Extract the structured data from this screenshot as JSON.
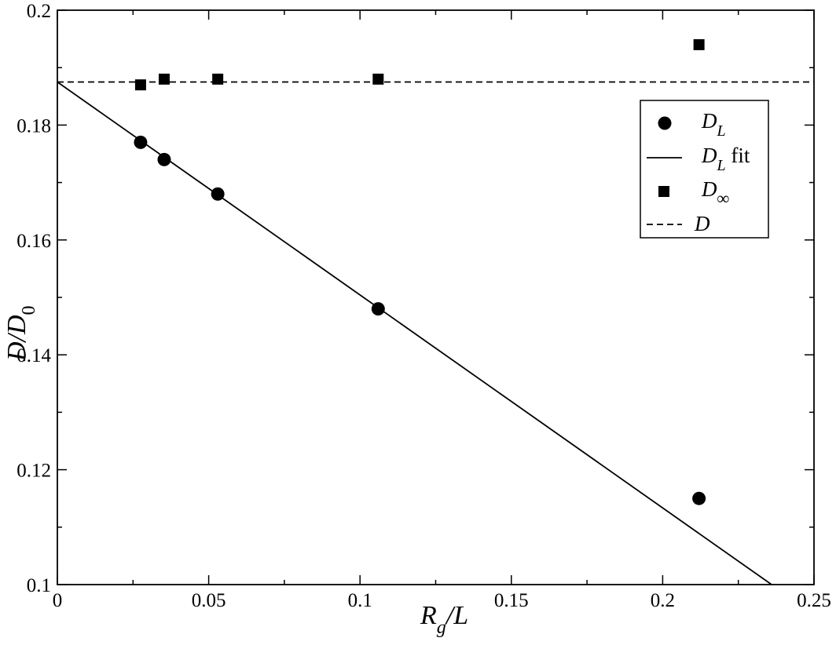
{
  "chart_data": {
    "type": "scatter",
    "xlabel": "R_g/L",
    "ylabel": "D/D_0",
    "xlim": [
      0,
      0.25
    ],
    "ylim": [
      0.1,
      0.2
    ],
    "x_ticks": [
      0,
      0.05,
      0.1,
      0.15,
      0.2,
      0.25
    ],
    "x_tick_labels": [
      "0",
      "0.05",
      "0.1",
      "0.15",
      "0.2",
      "0.25"
    ],
    "y_ticks": [
      0.1,
      0.12,
      0.14,
      0.16,
      0.18,
      0.2
    ],
    "y_tick_labels": [
      "0.1",
      "0.12",
      "0.14",
      "0.16",
      "0.18",
      "0.2"
    ],
    "grid": false,
    "legend_position": "top-right",
    "series": [
      {
        "name": "D_L",
        "kind": "scatter",
        "marker": "circle",
        "x": [
          0.0275,
          0.0353,
          0.053,
          0.106,
          0.212
        ],
        "y": [
          0.177,
          0.174,
          0.168,
          0.148,
          0.115
        ]
      },
      {
        "name": "D_L fit",
        "kind": "line",
        "style": "solid",
        "x": [
          0,
          0.236
        ],
        "y": [
          0.1875,
          0.1
        ]
      },
      {
        "name": "D_∞",
        "kind": "scatter",
        "marker": "square",
        "x": [
          0.0275,
          0.0353,
          0.053,
          0.106,
          0.212
        ],
        "y": [
          0.187,
          0.188,
          0.188,
          0.188,
          0.194
        ]
      },
      {
        "name": "D",
        "kind": "line",
        "style": "dashed",
        "x": [
          0,
          0.25
        ],
        "y": [
          0.1875,
          0.1875
        ]
      }
    ],
    "legend": {
      "entries": [
        {
          "main": "D",
          "sub": "L",
          "suffix": ""
        },
        {
          "main": "D",
          "sub": "L",
          "suffix": " fit"
        },
        {
          "main": "D",
          "sub": "∞",
          "suffix": ""
        },
        {
          "main": "D",
          "sub": "",
          "suffix": ""
        }
      ]
    },
    "axis_text": {
      "x_main": "R",
      "x_sub": "g",
      "x_rest": "/L",
      "y_main": "D/D",
      "y_sub": "0"
    }
  }
}
